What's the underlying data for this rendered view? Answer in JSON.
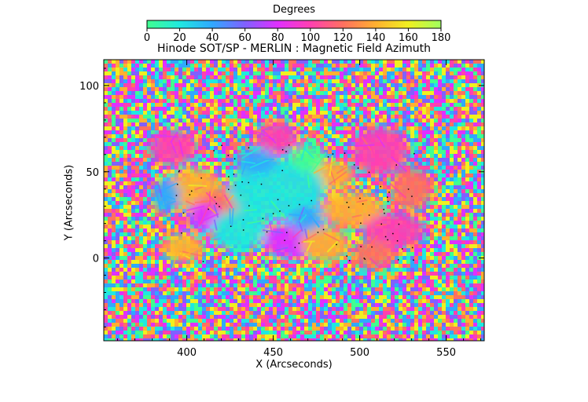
{
  "chart_data": {
    "type": "heatmap",
    "title": "Hinode SOT/SP - MERLIN : Magnetic Field Azimuth",
    "xlabel": "X (Arcseconds)",
    "ylabel": "Y (Arcseconds)",
    "xlim": [
      352,
      572
    ],
    "ylim": [
      -48,
      115
    ],
    "x_ticks": [
      400,
      450,
      500,
      550
    ],
    "y_ticks": [
      0,
      50,
      100
    ],
    "colorbar": {
      "label": "Degrees",
      "range": [
        0,
        180
      ],
      "ticks": [
        0,
        20,
        40,
        60,
        80,
        100,
        120,
        140,
        160,
        180
      ],
      "colors": [
        "#40ff90",
        "#20e8e0",
        "#30a8ff",
        "#8060ff",
        "#e030ff",
        "#ff40b0",
        "#ff7060",
        "#ffb030",
        "#f0f020",
        "#a0ff60"
      ]
    },
    "regions": [
      {
        "x": 392,
        "y": 64,
        "rx": 14,
        "ry": 10,
        "value": 100
      },
      {
        "x": 452,
        "y": 70,
        "rx": 12,
        "ry": 9,
        "value": 108
      },
      {
        "x": 512,
        "y": 62,
        "rx": 16,
        "ry": 14,
        "value": 105
      },
      {
        "x": 485,
        "y": 48,
        "rx": 12,
        "ry": 8,
        "value": 150
      },
      {
        "x": 530,
        "y": 40,
        "rx": 12,
        "ry": 12,
        "value": 125
      },
      {
        "x": 496,
        "y": 28,
        "rx": 18,
        "ry": 10,
        "value": 140
      },
      {
        "x": 520,
        "y": 16,
        "rx": 18,
        "ry": 10,
        "value": 110
      },
      {
        "x": 404,
        "y": 40,
        "rx": 16,
        "ry": 12,
        "value": 150
      },
      {
        "x": 420,
        "y": 30,
        "rx": 14,
        "ry": 10,
        "value": 130
      },
      {
        "x": 398,
        "y": 6,
        "rx": 12,
        "ry": 8,
        "value": 150
      },
      {
        "x": 410,
        "y": 24,
        "rx": 10,
        "ry": 8,
        "value": 90
      },
      {
        "x": 452,
        "y": 40,
        "rx": 28,
        "ry": 18,
        "value": 22
      },
      {
        "x": 430,
        "y": 16,
        "rx": 16,
        "ry": 12,
        "value": 35
      },
      {
        "x": 460,
        "y": 10,
        "rx": 16,
        "ry": 10,
        "value": 90
      },
      {
        "x": 470,
        "y": 22,
        "rx": 10,
        "ry": 8,
        "value": 45
      },
      {
        "x": 480,
        "y": 8,
        "rx": 14,
        "ry": 10,
        "value": 150
      },
      {
        "x": 508,
        "y": 2,
        "rx": 12,
        "ry": 8,
        "value": 130
      },
      {
        "x": 440,
        "y": 56,
        "rx": 12,
        "ry": 8,
        "value": 40
      },
      {
        "x": 470,
        "y": 58,
        "rx": 10,
        "ry": 8,
        "value": 15
      },
      {
        "x": 388,
        "y": 36,
        "rx": 8,
        "ry": 10,
        "value": 55
      }
    ]
  }
}
